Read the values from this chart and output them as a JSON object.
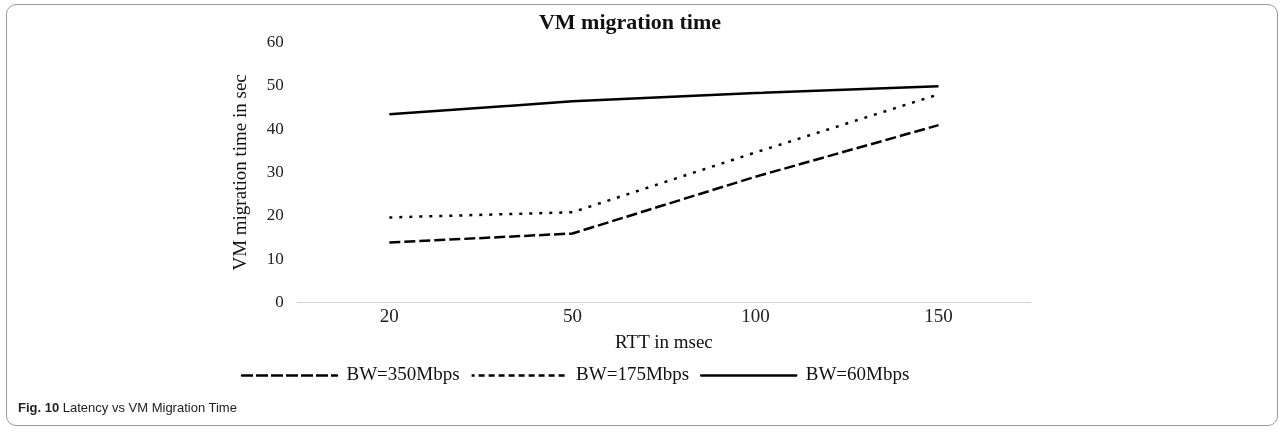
{
  "chart_data": {
    "type": "line",
    "title": "VM migration time",
    "xlabel": "RTT in msec",
    "ylabel": "VM migration time in sec",
    "categories": [
      "20",
      "50",
      "100",
      "150"
    ],
    "series": [
      {
        "name": "BW=350Mbps",
        "color": "#000000",
        "line_style": "dashed",
        "values": [
          13.8,
          15.9,
          29,
          40.9
        ]
      },
      {
        "name": "BW=175Mbps",
        "color": "#000000",
        "line_style": "dotted",
        "values": [
          19.6,
          20.8,
          34.6,
          48
        ]
      },
      {
        "name": "BW=60Mbps",
        "color": "#000000",
        "line_style": "solid",
        "values": [
          43.4,
          46.4,
          48.3,
          49.9
        ]
      }
    ],
    "ylim": [
      0,
      60
    ],
    "yticks": [
      0,
      10,
      20,
      30,
      40,
      50,
      60
    ],
    "grid": false,
    "legend": "bottom",
    "marker": "none",
    "annotations": [
      "Fig. 10 Latency vs VM Migration Time"
    ]
  }
}
